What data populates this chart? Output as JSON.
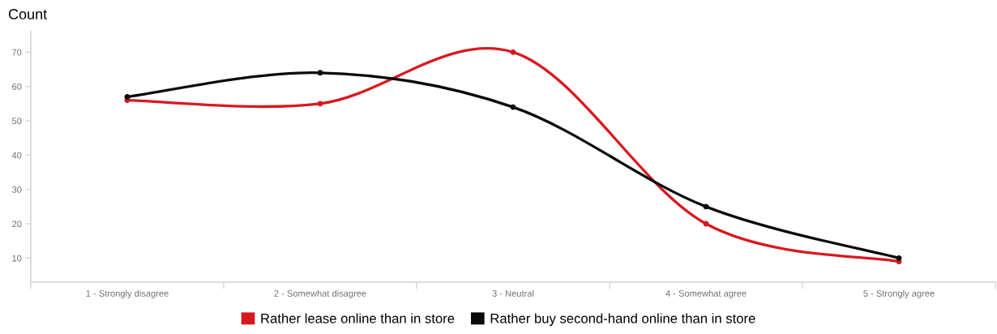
{
  "chart_data": {
    "type": "line",
    "ylabel": "Count",
    "categories": [
      "1 - Strongly disagree",
      "2 - Somewhat disagree",
      "3 - Neutral",
      "4 - Somewhat agree",
      "5 - Strongly agree"
    ],
    "series": [
      {
        "name": "Rather lease online than in store",
        "color": "#d7191f",
        "values": [
          56,
          55,
          70,
          20,
          9
        ]
      },
      {
        "name": "Rather buy second-hand online than in store",
        "color": "#0a0a0a",
        "values": [
          57,
          64,
          54,
          25,
          10
        ]
      }
    ],
    "ylim": [
      3,
      76
    ],
    "yticks": [
      10,
      20,
      30,
      40,
      50,
      60,
      70
    ],
    "grid": false,
    "legend": "bottom",
    "marker": "circle",
    "line_style": "solid"
  }
}
